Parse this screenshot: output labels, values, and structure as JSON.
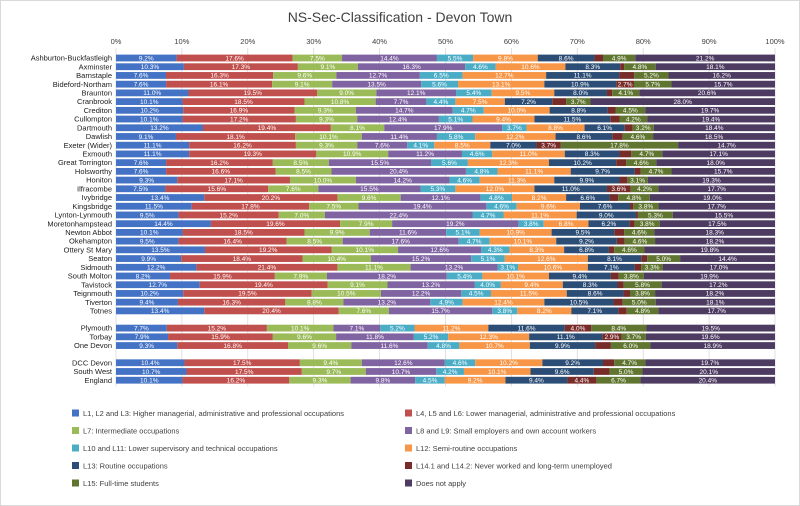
{
  "chart_data": {
    "type": "bar",
    "orientation": "horizontal",
    "stacked": true,
    "percent": true,
    "title": "NS-Sec-Classification - Devon Town",
    "x_ticks": [
      "0%",
      "10%",
      "20%",
      "30%",
      "40%",
      "50%",
      "60%",
      "70%",
      "80%",
      "90%",
      "100%"
    ],
    "xlim": [
      0,
      100
    ],
    "legend_position": "bottom",
    "colors": [
      "#4472C4",
      "#C0504D",
      "#9BBB59",
      "#8064A2",
      "#4BACC6",
      "#F79646",
      "#2C4D75",
      "#772C2A",
      "#5F7530",
      "#4D3B62"
    ],
    "series_names": [
      "L1, L2 and L3: Higher managerial, administrative and professional occupations",
      "L4, L5 and L6: Lower managerial, administrative and professional occupations",
      "L7: Intermediate occupations",
      "L8 and L9: Small employers and own account workers",
      "L10 and L11: Lower supervisory and technical occupations",
      "L12: Semi-routine occupations",
      "L13: Routine occupations",
      "L14.1 and L14.2: Never worked and long-term unemployed",
      "L15: Full-time students",
      "Does not apply"
    ],
    "categories": [
      "Ashburton-Buckfastleigh",
      "Axminster",
      "Barnstaple",
      "Bideford-Northam",
      "Braunton",
      "Cranbrook",
      "Crediton",
      "Cullompton",
      "Dartmouth",
      "Dawlish",
      "Exeter (Wider)",
      "Exmouth",
      "Great Torrington",
      "Holsworthy",
      "Honiton",
      "Ilfracombe",
      "Ivybridge",
      "Kingsbridge",
      "Lynton-Lynmouth",
      "Moretonhampstead",
      "Newton Abbot",
      "Okehampton",
      "Ottery St Mary",
      "Seaton",
      "Sidmouth",
      "South Molton",
      "Tavistock",
      "Teignmouth",
      "Tiverton",
      "Totnes",
      "Plymouth",
      "Torbay",
      "One Devon",
      "DCC Devon",
      "South West",
      "England"
    ],
    "groups": [
      30,
      3,
      3
    ],
    "rows": [
      [
        9.2,
        17.6,
        7.5,
        14.4,
        5.5,
        9.8,
        8.6,
        1.3,
        4.9,
        21.2
      ],
      [
        10.3,
        17.3,
        9.1,
        16.3,
        4.6,
        10.6,
        8.3,
        0.6,
        4.8,
        18.1
      ],
      [
        7.6,
        16.3,
        9.6,
        12.7,
        6.5,
        12.7,
        11.1,
        2.3,
        5.2,
        16.2
      ],
      [
        7.6,
        16.1,
        9.1,
        13.5,
        5.6,
        13.1,
        10.9,
        2.7,
        5.7,
        15.7
      ],
      [
        11.0,
        19.5,
        9.0,
        12.1,
        5.4,
        9.5,
        8.0,
        0.8,
        4.1,
        20.6
      ],
      [
        10.1,
        18.5,
        10.8,
        7.7,
        4.4,
        7.5,
        7.2,
        2.1,
        3.7,
        28.0
      ],
      [
        10.2,
        16.9,
        9.3,
        14.7,
        4.7,
        10.0,
        8.8,
        1.2,
        4.5,
        19.7
      ],
      [
        10.1,
        17.2,
        9.3,
        12.4,
        5.1,
        9.4,
        11.5,
        1.4,
        4.2,
        19.4
      ],
      [
        13.2,
        19.4,
        8.1,
        17.9,
        3.7,
        8.8,
        6.1,
        1.2,
        3.2,
        18.4
      ],
      [
        9.1,
        18.1,
        10.1,
        11.4,
        5.8,
        12.2,
        8.6,
        1.6,
        4.6,
        18.5
      ],
      [
        11.1,
        16.2,
        9.3,
        7.6,
        4.1,
        8.5,
        7.0,
        3.7,
        17.8,
        14.7
      ],
      [
        11.1,
        19.3,
        10.9,
        11.2,
        4.6,
        11.0,
        8.3,
        1.8,
        4.7,
        17.1
      ],
      [
        7.6,
        16.2,
        8.5,
        15.5,
        5.6,
        12.3,
        10.2,
        1.5,
        4.6,
        18.0
      ],
      [
        7.6,
        16.6,
        8.5,
        20.4,
        4.8,
        11.1,
        9.7,
        0.9,
        4.7,
        15.7
      ],
      [
        9.3,
        17.1,
        10.0,
        14.2,
        4.6,
        11.3,
        9.9,
        1.2,
        3.1,
        19.3
      ],
      [
        7.5,
        15.6,
        7.6,
        15.5,
        5.3,
        12.0,
        11.0,
        3.6,
        4.2,
        17.7
      ],
      [
        13.4,
        20.2,
        9.6,
        12.1,
        4.8,
        8.2,
        6.6,
        1.3,
        4.8,
        19.0
      ],
      [
        11.5,
        17.8,
        7.5,
        19.4,
        4.6,
        9.6,
        7.6,
        0.5,
        3.8,
        17.7
      ],
      [
        9.5,
        15.2,
        7.0,
        22.4,
        4.7,
        11.1,
        9.0,
        0.3,
        5.3,
        15.5
      ],
      [
        14.4,
        19.6,
        7.9,
        19.2,
        3.8,
        6.8,
        6.2,
        0.8,
        3.8,
        17.5
      ],
      [
        10.1,
        18.5,
        9.9,
        11.6,
        5.1,
        10.9,
        9.5,
        1.5,
        4.6,
        18.3
      ],
      [
        9.5,
        16.4,
        8.5,
        17.6,
        4.7,
        10.1,
        9.2,
        1.2,
        4.6,
        18.2
      ],
      [
        13.5,
        19.2,
        10.1,
        12.6,
        4.3,
        8.3,
        6.8,
        0.8,
        4.6,
        19.8
      ],
      [
        9.9,
        18.4,
        10.4,
        15.2,
        5.1,
        12.6,
        8.1,
        0.9,
        5.0,
        14.4
      ],
      [
        12.2,
        21.4,
        11.1,
        13.2,
        3.1,
        10.6,
        7.1,
        1.0,
        3.3,
        17.0
      ],
      [
        8.2,
        15.9,
        7.9,
        18.2,
        5.4,
        10.1,
        9.4,
        1.2,
        3.8,
        19.9
      ],
      [
        12.7,
        19.4,
        9.1,
        13.2,
        4.0,
        9.4,
        8.3,
        0.9,
        5.8,
        17.2
      ],
      [
        10.2,
        19.5,
        10.5,
        12.2,
        4.5,
        11.5,
        8.6,
        1.0,
        3.8,
        18.2
      ],
      [
        9.4,
        16.3,
        8.8,
        13.2,
        4.9,
        12.4,
        10.5,
        1.4,
        5.0,
        18.1
      ],
      [
        13.4,
        20.4,
        7.6,
        15.7,
        3.8,
        8.2,
        7.1,
        1.3,
        4.8,
        17.7
      ],
      [
        7.7,
        15.2,
        10.1,
        7.1,
        5.2,
        11.2,
        11.6,
        4.0,
        8.4,
        19.5
      ],
      [
        7.9,
        15.9,
        9.6,
        11.8,
        5.2,
        12.3,
        11.1,
        2.9,
        3.7,
        19.6
      ],
      [
        9.3,
        16.8,
        9.6,
        11.6,
        4.8,
        10.7,
        9.9,
        2.4,
        6.0,
        18.9
      ],
      [
        10.4,
        17.5,
        9.4,
        12.6,
        4.6,
        10.2,
        9.2,
        1.7,
        4.7,
        19.7
      ],
      [
        10.7,
        17.5,
        9.7,
        10.7,
        4.2,
        10.1,
        9.6,
        2.4,
        5.0,
        20.1
      ],
      [
        10.1,
        16.2,
        9.3,
        9.8,
        4.5,
        9.2,
        9.4,
        4.4,
        6.7,
        20.4
      ]
    ]
  }
}
